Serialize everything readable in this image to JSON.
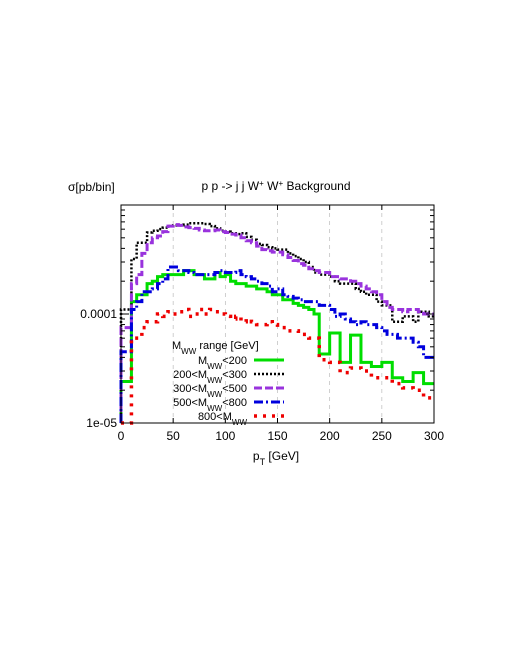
{
  "chart_data": {
    "type": "line",
    "title_parts": [
      "p p -> j j W",
      "+",
      " W",
      "+",
      " Background"
    ],
    "ylabel": "σ[pb/bin]",
    "xlabel_parts": [
      "p",
      "T",
      " [GeV]"
    ],
    "xlim": [
      0,
      300
    ],
    "ylim": [
      1e-05,
      0.001
    ],
    "yscale": "log",
    "xticks": [
      0,
      50,
      100,
      150,
      200,
      250,
      300
    ],
    "xtick_labels": [
      "0",
      "50",
      "100",
      "150",
      "200",
      "250",
      "300"
    ],
    "yticks": [
      1e-05,
      0.0001
    ],
    "ytick_labels": [
      "1e-05",
      "0.0001"
    ],
    "grid": "vertical-dashed",
    "legend_title_parts": [
      "M",
      "WW",
      " range [GeV]"
    ],
    "legend_placement": "bottom-left",
    "bin_edges": [
      0,
      5,
      10,
      15,
      20,
      25,
      30,
      35,
      40,
      45,
      50,
      55,
      60,
      65,
      70,
      75,
      80,
      85,
      90,
      95,
      100,
      105,
      110,
      115,
      120,
      125,
      130,
      135,
      140,
      145,
      150,
      155,
      160,
      165,
      170,
      175,
      180,
      185,
      190,
      195,
      200,
      205,
      210,
      215,
      220,
      225,
      230,
      235,
      240,
      245,
      250,
      255,
      260,
      265,
      270,
      275,
      280,
      285,
      290,
      295,
      300
    ],
    "series": [
      {
        "legend_parts": [
          "M",
          "WW",
          "<200"
        ],
        "color": "#00dd00",
        "style": "solid",
        "values": [
          2.4e-05,
          2.4e-05,
          0.00013,
          0.00015,
          0.00015,
          0.00019,
          0.0002,
          0.00022,
          0.00023,
          0.00023,
          0.00023,
          0.00023,
          0.00025,
          0.00025,
          0.00023,
          0.00023,
          0.00021,
          0.00021,
          0.00024,
          0.00022,
          0.00023,
          0.0002,
          0.00019,
          0.00019,
          0.00018,
          0.00018,
          0.00017,
          0.00017,
          0.00016,
          0.00015,
          0.00015,
          0.000135,
          0.000135,
          0.000125,
          0.00012,
          0.000115,
          0.00011,
          0.0001,
          4.3e-05,
          4.3e-05,
          6.7e-05,
          6.7e-05,
          3.6e-05,
          3.6e-05,
          6.4e-05,
          6.4e-05,
          3.6e-05,
          3.6e-05,
          3.3e-05,
          3.3e-05,
          3.6e-05,
          3.6e-05,
          2.6e-05,
          2.6e-05,
          2.4e-05,
          2.4e-05,
          2.9e-05,
          2.9e-05,
          2.3e-05,
          2.3e-05
        ]
      },
      {
        "legend_parts": [
          "200<M",
          "WW",
          "<300"
        ],
        "color": "#000000",
        "style": "dotted",
        "values": [
          0.00011,
          0.00011,
          0.00032,
          0.00045,
          0.00045,
          0.00056,
          0.00058,
          0.0006,
          0.00062,
          0.00064,
          0.00065,
          0.00065,
          0.00066,
          0.00068,
          0.00068,
          0.00068,
          0.00067,
          0.00064,
          0.00061,
          0.00058,
          0.00057,
          0.00055,
          0.00054,
          0.00055,
          0.00051,
          0.00048,
          0.00044,
          0.00043,
          0.00041,
          0.0004,
          0.00039,
          0.00039,
          0.00036,
          0.00034,
          0.00032,
          0.0003,
          0.00027,
          0.00024,
          0.00023,
          0.00023,
          0.00022,
          0.0002,
          0.00019,
          0.00019,
          0.00019,
          0.00017,
          0.00016,
          0.00015,
          0.00015,
          0.00013,
          0.00012,
          0.00012,
          8.5e-05,
          8.5e-05,
          9.5e-05,
          9.5e-05,
          8.5e-05,
          0.000105,
          0.000105,
          9.5e-05
        ]
      },
      {
        "legend_parts": [
          "300<M",
          "WW",
          "<500"
        ],
        "color": "#9933dd",
        "style": "dashed",
        "values": [
          7.5e-05,
          7.5e-05,
          0.00019,
          0.00023,
          0.00036,
          0.00045,
          0.0005,
          0.00052,
          0.00057,
          0.00064,
          0.00066,
          0.00065,
          0.00063,
          0.00062,
          0.00061,
          0.00059,
          0.00058,
          0.00058,
          0.00059,
          0.00057,
          0.00056,
          0.00054,
          0.00053,
          0.0005,
          0.00047,
          0.00045,
          0.00042,
          0.00039,
          0.00038,
          0.00037,
          0.00037,
          0.00035,
          0.00033,
          0.00031,
          0.00029,
          0.00028,
          0.00026,
          0.00025,
          0.00024,
          0.00024,
          0.00022,
          0.00022,
          0.00021,
          0.00021,
          0.0002,
          0.00019,
          0.00018,
          0.00017,
          0.00016,
          0.00015,
          0.00013,
          0.000115,
          0.00011,
          0.00011,
          0.000105,
          0.00011,
          0.00011,
          0.000105,
          0.0001,
          0.0001
        ]
      },
      {
        "legend_parts": [
          "500<M",
          "WW",
          "<800"
        ],
        "color": "#0000dd",
        "style": "dash-dot",
        "values": [
          4.5e-05,
          4.5e-05,
          0.00011,
          0.00013,
          0.00016,
          0.00016,
          0.00017,
          0.00019,
          0.00021,
          0.00027,
          0.00027,
          0.00025,
          0.00025,
          0.00024,
          0.00023,
          0.00023,
          0.00023,
          0.00023,
          0.00024,
          0.00025,
          0.00024,
          0.00024,
          0.00025,
          0.00023,
          0.00022,
          0.00021,
          0.0002,
          0.00019,
          0.00018,
          0.00016,
          0.00017,
          0.00015,
          0.000145,
          0.00014,
          0.000135,
          0.00013,
          0.00013,
          0.00013,
          0.00012,
          0.00012,
          0.00011,
          9.5e-05,
          0.0001,
          9e-05,
          8.5e-05,
          8e-05,
          8.5e-05,
          8e-05,
          8e-05,
          7.5e-05,
          7e-05,
          6.5e-05,
          6.5e-05,
          6e-05,
          6e-05,
          6e-05,
          5.5e-05,
          5e-05,
          4e-05,
          4e-05
        ]
      },
      {
        "legend_parts": [
          "800<M",
          "WW",
          ""
        ],
        "color": "#ee0000",
        "style": "dotted-coarse",
        "values": [
          1e-05,
          1e-05,
          6e-05,
          6e-05,
          7.5e-05,
          8.5e-05,
          8.5e-05,
          0.0001,
          9.5e-05,
          0.000105,
          0.0001,
          0.000105,
          0.00011,
          9.5e-05,
          0.0001,
          0.00011,
          0.0001,
          0.00011,
          0.000105,
          0.0001,
          9.5e-05,
          9e-05,
          9.5e-05,
          8.5e-05,
          9e-05,
          8.5e-05,
          8e-05,
          8e-05,
          8.5e-05,
          8e-05,
          7.5e-05,
          7.5e-05,
          7e-05,
          7e-05,
          6.5e-05,
          6.5e-05,
          6e-05,
          6e-05,
          3.8e-05,
          3.8e-05,
          3.6e-05,
          3.6e-05,
          2.9e-05,
          2.9e-05,
          3.2e-05,
          3.2e-05,
          3e-05,
          3e-05,
          2.6e-05,
          2.6e-05,
          2.6e-05,
          2.6e-05,
          2.3e-05,
          2.3e-05,
          2.1e-05,
          2.1e-05,
          2e-05,
          2e-05,
          1.7e-05,
          1.7e-05
        ]
      }
    ]
  }
}
